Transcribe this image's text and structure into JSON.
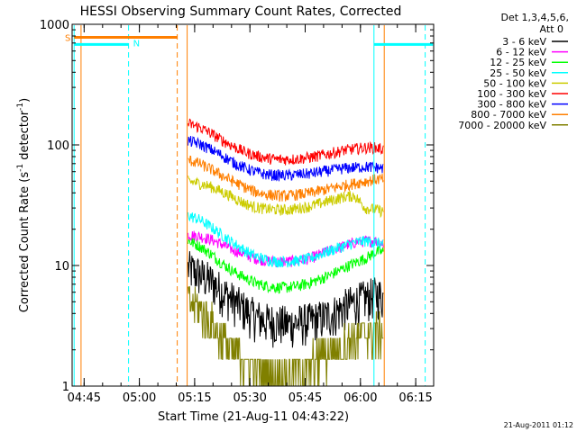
{
  "chart_data": {
    "type": "line",
    "title": "HESSI Observing Summary Count Rates, Corrected",
    "xlabel": "Start Time (21-Aug-11 04:43:22)",
    "ylabel": "Corrected Count Rate (s⁻¹ detector⁻¹)",
    "ylabel_parts": {
      "main": "Corrected Count Rate (s",
      "sup1": "-1",
      "mid": " detector",
      "sup2": "-1",
      "end": ")"
    },
    "y_scale": "log",
    "ylim": [
      1,
      1000
    ],
    "xlim_minutes": [
      -1.63,
      96.5
    ],
    "x_tick_labels": [
      "04:45",
      "05:00",
      "05:15",
      "05:30",
      "05:45",
      "06:00",
      "06:15"
    ],
    "x_tick_minutes": [
      1.63,
      16.63,
      31.63,
      46.63,
      61.63,
      76.63,
      91.63
    ],
    "y_tick_labels": [
      "1",
      "10",
      "100",
      "1000"
    ],
    "y_tick_values": [
      1,
      10,
      100,
      1000
    ],
    "legend_title_lines": [
      "Det 1,3,4,5,6,",
      "Att 0"
    ],
    "legend_position": "right",
    "footer_date": "21-Aug-2011 01:12",
    "data_start_minute": 29.6,
    "data_end_minute": 83.1,
    "series": [
      {
        "name": "3 - 6 keV",
        "color": "#000000",
        "x": [
          30,
          33,
          36,
          39,
          42,
          45,
          48,
          51,
          54,
          57,
          60,
          63,
          66,
          69,
          72,
          75,
          78,
          81,
          83
        ],
        "values": [
          9.5,
          8.5,
          7.5,
          6.2,
          5.2,
          4.4,
          3.8,
          3.5,
          3.4,
          3.3,
          3.4,
          3.5,
          3.7,
          4.0,
          4.5,
          5.0,
          5.4,
          5.8,
          5.5
        ]
      },
      {
        "name": "6 - 12 keV",
        "color": "#ff00ff",
        "x": [
          30,
          33,
          36,
          39,
          42,
          45,
          48,
          51,
          54,
          57,
          60,
          63,
          66,
          69,
          72,
          75,
          78,
          81,
          83
        ],
        "values": [
          18,
          17.5,
          16.5,
          15,
          13.5,
          12.5,
          11.5,
          11,
          10.8,
          10.8,
          11,
          11.5,
          12.5,
          13.5,
          14.5,
          15.5,
          16,
          16,
          15
        ]
      },
      {
        "name": "12 - 25 keV",
        "color": "#00ff00",
        "x": [
          30,
          33,
          36,
          39,
          42,
          45,
          48,
          51,
          54,
          57,
          60,
          63,
          66,
          69,
          72,
          75,
          78,
          81,
          83
        ],
        "values": [
          16,
          14.5,
          12.5,
          10.5,
          9,
          8,
          7.2,
          6.8,
          6.6,
          6.6,
          6.8,
          7.2,
          7.8,
          8.5,
          9.5,
          10.5,
          11.5,
          13,
          13
        ]
      },
      {
        "name": "25 - 50 keV",
        "color": "#00ffff",
        "x": [
          30,
          33,
          36,
          39,
          42,
          45,
          48,
          51,
          54,
          57,
          60,
          63,
          66,
          69,
          72,
          75,
          78,
          81,
          83
        ],
        "values": [
          26,
          24,
          21,
          18,
          15.5,
          13.5,
          12,
          11.2,
          10.8,
          10.8,
          11,
          11.5,
          12.5,
          13.5,
          14.5,
          15.5,
          16,
          15.5,
          15
        ]
      },
      {
        "name": "50 - 100 keV",
        "color": "#cccc00",
        "x": [
          30,
          33,
          36,
          39,
          42,
          45,
          48,
          51,
          54,
          57,
          60,
          63,
          66,
          69,
          72,
          75,
          78,
          81,
          83
        ],
        "values": [
          50,
          48,
          45,
          41,
          37,
          33,
          30.5,
          29.5,
          29,
          29,
          30,
          31,
          33,
          35,
          37,
          38,
          30,
          29,
          28
        ]
      },
      {
        "name": "100 - 300 keV",
        "color": "#ff0000",
        "x": [
          30,
          33,
          36,
          39,
          42,
          45,
          48,
          51,
          54,
          57,
          60,
          63,
          66,
          69,
          72,
          75,
          78,
          81,
          83
        ],
        "values": [
          150,
          140,
          125,
          110,
          98,
          88,
          82,
          78,
          76,
          76,
          77,
          79,
          82,
          86,
          90,
          93,
          95,
          95,
          92
        ]
      },
      {
        "name": "300 - 800 keV",
        "color": "#0000ff",
        "x": [
          30,
          33,
          36,
          39,
          42,
          45,
          48,
          51,
          54,
          57,
          60,
          63,
          66,
          69,
          72,
          75,
          78,
          81,
          83
        ],
        "values": [
          108,
          102,
          92,
          82,
          72,
          65,
          60,
          57,
          56,
          56,
          57,
          58,
          60,
          62,
          64,
          65,
          66,
          65,
          64
        ]
      },
      {
        "name": "800 - 7000 keV",
        "color": "#ff7f00",
        "x": [
          30,
          33,
          36,
          39,
          42,
          45,
          48,
          51,
          54,
          57,
          60,
          63,
          66,
          69,
          72,
          75,
          78,
          81,
          83
        ],
        "values": [
          75,
          70,
          63,
          56,
          50,
          45,
          41,
          39,
          38,
          38,
          39,
          40,
          42,
          44,
          46,
          48,
          50,
          52,
          52
        ]
      },
      {
        "name": "7000 - 20000 keV",
        "color": "#808000",
        "x": [
          30,
          33,
          36,
          39,
          42,
          45,
          48,
          51,
          54,
          57,
          60,
          63,
          66,
          69,
          72,
          75,
          78,
          81,
          83
        ],
        "values": [
          5,
          4.5,
          3.5,
          2.5,
          2.0,
          1.6,
          1.4,
          1.3,
          1.2,
          1.2,
          1.3,
          1.5,
          1.7,
          2.0,
          2.2,
          2.5,
          2.7,
          2.8,
          2.8
        ]
      }
    ],
    "flags": [
      {
        "label": "S",
        "color": "#ff7f00",
        "y_value": 780,
        "x_start": -1.1,
        "x_end": 26.9
      },
      {
        "label": "N",
        "color": "#00ffff",
        "y_value": 680,
        "x_start": -1.1,
        "x_end": 13.7
      },
      {
        "label": "",
        "color": "#00ffff",
        "y_value": 680,
        "x_start": 80.3,
        "x_end": 96.3
      }
    ],
    "vertical_markers": [
      {
        "x": -1.1,
        "color": "#00ffff",
        "style": "solid"
      },
      {
        "x": 0.8,
        "color": "#ff7f00",
        "style": "solid"
      },
      {
        "x": 13.7,
        "color": "#00ffff",
        "style": "dashed"
      },
      {
        "x": 26.9,
        "color": "#ff7f00",
        "style": "dashed"
      },
      {
        "x": 29.6,
        "color": "#ff7f00",
        "style": "solid"
      },
      {
        "x": 80.3,
        "color": "#00ffff",
        "style": "solid"
      },
      {
        "x": 83.1,
        "color": "#ff7f00",
        "style": "solid"
      },
      {
        "x": 94.2,
        "color": "#00ffff",
        "style": "dashed"
      }
    ]
  }
}
